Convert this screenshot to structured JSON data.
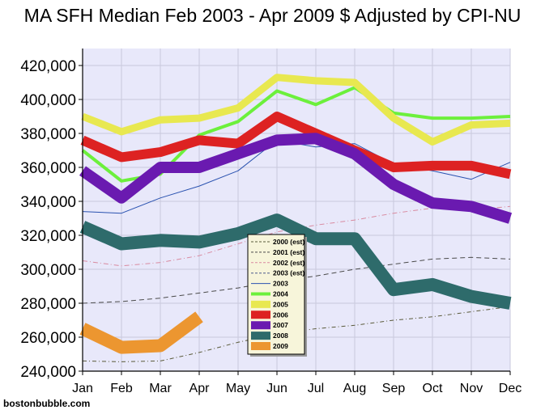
{
  "chart_data": {
    "type": "line",
    "title": "MA SFH Median Feb 2003 - Apr 2009 $ Adjusted by CPI-NU",
    "credit": "bostonbubble.com",
    "categories": [
      "Jan",
      "Feb",
      "Mar",
      "Apr",
      "May",
      "Jun",
      "Jul",
      "Aug",
      "Sep",
      "Oct",
      "Nov",
      "Dec"
    ],
    "ylim": [
      240000,
      430000
    ],
    "yticks": [
      240000,
      260000,
      280000,
      300000,
      320000,
      340000,
      360000,
      380000,
      400000,
      420000
    ],
    "ytick_labels": [
      "240,000",
      "260,000",
      "280,000",
      "300,000",
      "320,000",
      "340,000",
      "360,000",
      "380,000",
      "400,000",
      "420,000"
    ],
    "grid": true,
    "legend_position": "center",
    "plot_background": "#e8e8fa",
    "legend_background": "#f7f5da",
    "series": [
      {
        "name": "2000 (est)",
        "color": "#5a5a3a",
        "width": 1,
        "dash": "5,3,1,3",
        "values": [
          246000,
          245500,
          246000,
          251000,
          257000,
          262000,
          265000,
          267000,
          270000,
          272000,
          275000,
          278000
        ]
      },
      {
        "name": "2001 (est)",
        "color": "#4a4a4a",
        "width": 1,
        "dash": "6,4",
        "values": [
          280000,
          281000,
          283000,
          286000,
          289000,
          293000,
          296000,
          300000,
          303000,
          306000,
          307000,
          306000
        ]
      },
      {
        "name": "2002 (est)",
        "color": "#d88aa0",
        "width": 1,
        "dash": "6,3,1,3",
        "values": [
          305000,
          302000,
          304000,
          308000,
          315000,
          322000,
          326000,
          329000,
          333000,
          336000,
          335000,
          337000
        ]
      },
      {
        "name": "2003 (est)",
        "color": "#4a5a8a",
        "width": 1,
        "dash": "5,4",
        "values": [
          null,
          null,
          null,
          null,
          null,
          null,
          null,
          null,
          null,
          null,
          null,
          null
        ]
      },
      {
        "name": "2003",
        "color": "#2a52b0",
        "width": 1,
        "dash": "",
        "values": [
          334000,
          333000,
          342000,
          349000,
          358000,
          376000,
          372000,
          374000,
          362000,
          358000,
          353000,
          363000
        ]
      },
      {
        "name": "2004",
        "color": "#6cf03c",
        "width": 4,
        "dash": "",
        "values": [
          370000,
          352000,
          356000,
          379000,
          387000,
          405000,
          397000,
          407000,
          392000,
          389000,
          389000,
          390000
        ]
      },
      {
        "name": "2005",
        "color": "#e8e850",
        "width": 9,
        "dash": "",
        "values": [
          390000,
          381000,
          388000,
          389000,
          395000,
          413000,
          411000,
          410000,
          389000,
          375000,
          385000,
          386000
        ]
      },
      {
        "name": "2006",
        "color": "#dd2222",
        "width": 12,
        "dash": "",
        "values": [
          376000,
          366000,
          369000,
          376000,
          374000,
          390000,
          380000,
          370000,
          360000,
          361000,
          361000,
          356000
        ]
      },
      {
        "name": "2007",
        "color": "#6a1ab0",
        "width": 14,
        "dash": "",
        "values": [
          358000,
          342000,
          360000,
          360000,
          368000,
          376000,
          377000,
          368000,
          350000,
          339000,
          337000,
          330000
        ]
      },
      {
        "name": "2008",
        "color": "#2e6b6b",
        "width": 16,
        "dash": "",
        "values": [
          325000,
          315000,
          317000,
          316000,
          321000,
          329000,
          318000,
          318000,
          288000,
          291000,
          284000,
          280000
        ]
      },
      {
        "name": "2009",
        "color": "#ec9630",
        "width": 16,
        "dash": "",
        "values": [
          265000,
          254000,
          255000,
          272000,
          null,
          null,
          null,
          null,
          null,
          null,
          null,
          null
        ]
      }
    ]
  }
}
